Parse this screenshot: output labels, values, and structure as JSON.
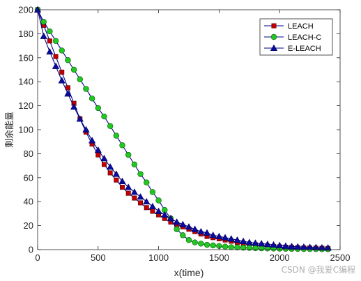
{
  "chart_data": {
    "type": "line",
    "xlabel": "x(time)",
    "ylabel": "剩余能量",
    "xlim": [
      0,
      2500
    ],
    "ylim": [
      0,
      200
    ],
    "xticks": [
      0,
      500,
      1000,
      1500,
      2000,
      2500
    ],
    "yticks": [
      0,
      20,
      40,
      60,
      80,
      100,
      120,
      140,
      160,
      180,
      200
    ],
    "grid": false,
    "legend_position": "top-right",
    "series": [
      {
        "name": "LEACH",
        "marker": "square",
        "line_color": "#00008b",
        "marker_color": "#c00000",
        "x": [
          0,
          50,
          100,
          150,
          200,
          250,
          300,
          350,
          400,
          450,
          500,
          550,
          600,
          650,
          700,
          750,
          800,
          850,
          900,
          950,
          1000,
          1050,
          1100,
          1150,
          1200,
          1250,
          1300,
          1350,
          1400,
          1450,
          1500,
          1550,
          1600,
          1650,
          1700,
          1750,
          1800,
          1850,
          1900,
          1950,
          2000,
          2050,
          2100,
          2150,
          2200,
          2250,
          2300,
          2350,
          2400
        ],
        "y": [
          200,
          187,
          174,
          161,
          148,
          135,
          122,
          109,
          98,
          88,
          79,
          71,
          64,
          58,
          52,
          47,
          43,
          39,
          35,
          32,
          29,
          26,
          23,
          21,
          19,
          17,
          15,
          13,
          11,
          10,
          9,
          8,
          7,
          6,
          5,
          4.5,
          4,
          3.5,
          3,
          2.6,
          2.3,
          2,
          1.8,
          1.6,
          1.4,
          1.3,
          1.2,
          1.1,
          1
        ]
      },
      {
        "name": "LEACH-C",
        "marker": "circle",
        "line_color": "#00008b",
        "marker_color": "#22c722",
        "x": [
          0,
          50,
          100,
          150,
          200,
          250,
          300,
          350,
          400,
          450,
          500,
          550,
          600,
          650,
          700,
          750,
          800,
          850,
          900,
          950,
          1000,
          1050,
          1100,
          1150,
          1200,
          1250,
          1300,
          1350,
          1400,
          1450,
          1500,
          1550,
          1600,
          1650,
          1700,
          1750,
          1800,
          1850,
          1900,
          1950,
          2000,
          2050,
          2100,
          2150,
          2200,
          2250,
          2300,
          2350,
          2400
        ],
        "y": [
          200,
          190,
          182,
          174,
          166,
          158,
          150,
          142,
          134,
          126,
          118,
          111,
          103,
          95,
          87,
          79,
          71,
          63,
          56,
          48,
          41,
          33,
          26,
          17,
          12,
          8,
          6,
          5,
          4,
          3.5,
          3,
          2.5,
          2,
          1.8,
          1.6,
          1.4,
          1.2,
          1.1,
          1,
          0.9,
          0.8,
          0.7,
          0.6,
          0.6,
          0.5,
          0.5,
          0.4,
          0.4,
          0.3
        ]
      },
      {
        "name": "E-LEACH",
        "marker": "triangle",
        "line_color": "#00008b",
        "marker_color": "#0a0a9e",
        "x": [
          0,
          50,
          100,
          150,
          200,
          250,
          300,
          350,
          400,
          450,
          500,
          550,
          600,
          650,
          700,
          750,
          800,
          850,
          900,
          950,
          1000,
          1050,
          1100,
          1150,
          1200,
          1250,
          1300,
          1350,
          1400,
          1450,
          1500,
          1550,
          1600,
          1650,
          1700,
          1750,
          1800,
          1850,
          1900,
          1950,
          2000,
          2050,
          2100,
          2150,
          2200,
          2250,
          2300,
          2350,
          2400
        ],
        "y": [
          200,
          178,
          165,
          153,
          141,
          130,
          119,
          109,
          100,
          91,
          83,
          76,
          69,
          63,
          57,
          52,
          48,
          44,
          40,
          36,
          32,
          29,
          26,
          23,
          21,
          19,
          17,
          15,
          14,
          12,
          11,
          10,
          9,
          8,
          7,
          6,
          5.5,
          5,
          4.5,
          4,
          3.5,
          3,
          2.7,
          2.4,
          2.2,
          2,
          1.8,
          1.6,
          1.5
        ]
      }
    ]
  },
  "watermark": "CSDN @我爱C编程"
}
